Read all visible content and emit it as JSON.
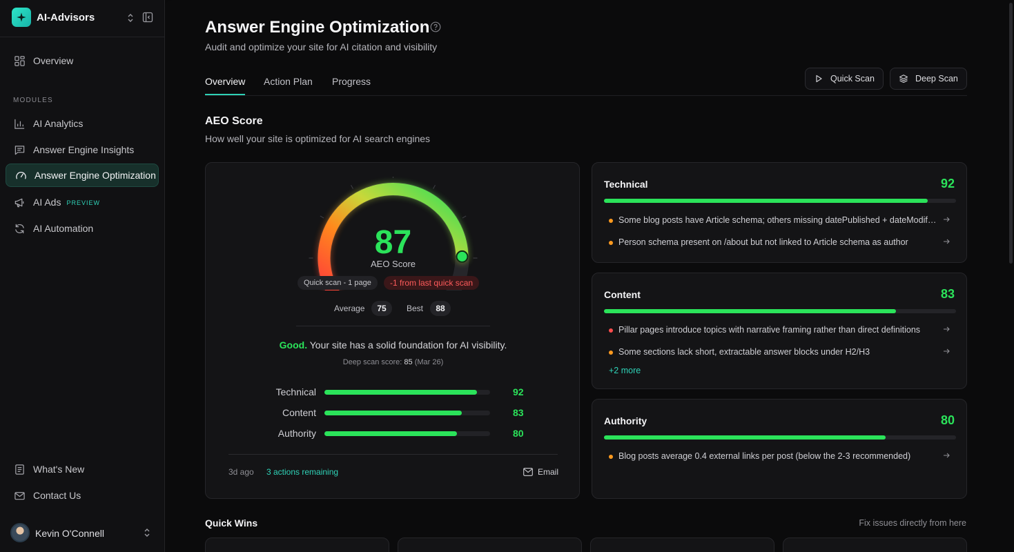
{
  "sidebar": {
    "brand": "AI-Advisors",
    "overview": "Overview",
    "section_label": "MODULES",
    "modules": [
      {
        "label": "AI Analytics",
        "icon": "bar-chart-icon"
      },
      {
        "label": "Answer Engine Insights",
        "icon": "message-square-icon"
      },
      {
        "label": "Answer Engine Optimization",
        "icon": "gauge-icon"
      },
      {
        "label": "AI Ads",
        "icon": "megaphone-icon",
        "tag": "PREVIEW"
      },
      {
        "label": "AI Automation",
        "icon": "refresh-icon"
      }
    ],
    "whats_new": "What's New",
    "contact": "Contact Us",
    "user_name": "Kevin O'Connell"
  },
  "header": {
    "title": "Answer Engine Optimization",
    "subtitle": "Audit and optimize your site for AI citation and visibility"
  },
  "tabs": [
    "Overview",
    "Action Plan",
    "Progress"
  ],
  "actions": {
    "quick_scan": "Quick Scan",
    "deep_scan": "Deep Scan"
  },
  "aeo": {
    "title": "AEO Score",
    "subtitle": "How well your site is optimized for AI search engines",
    "score": "87",
    "score_fraction": 0.87,
    "score_label": "AEO Score",
    "scan_pill": "Quick scan - 1 page",
    "delta_pill": "-1 from last quick scan",
    "average_label": "Average",
    "average": "75",
    "best_label": "Best",
    "best": "88",
    "verdict_word": "Good.",
    "verdict_text": " Your site has a solid foundation for AI visibility.",
    "deep_label": "Deep scan score: ",
    "deep_value": "85",
    "deep_date": " (Mar 26)",
    "breakdown": [
      {
        "label": "Technical",
        "value": 92
      },
      {
        "label": "Content",
        "value": 83
      },
      {
        "label": "Authority",
        "value": 80
      }
    ],
    "footer_ago": "3d ago",
    "footer_actions": "3 actions remaining",
    "footer_email": "Email"
  },
  "categories": [
    {
      "title": "Technical",
      "score": 92,
      "issues": [
        {
          "text": "Some blog posts have Article schema; others missing datePublished + dateModified",
          "color": "#ff9a1f"
        },
        {
          "text": "Person schema present on /about but not linked to Article schema as author",
          "color": "#ff9a1f"
        }
      ]
    },
    {
      "title": "Content",
      "score": 83,
      "issues": [
        {
          "text": "Pillar pages introduce topics with narrative framing rather than direct definitions",
          "color": "#ff4d4d"
        },
        {
          "text": "Some sections lack short, extractable answer blocks under H2/H3",
          "color": "#ff9a1f"
        }
      ],
      "more": "+2 more"
    },
    {
      "title": "Authority",
      "score": 80,
      "issues": [
        {
          "text": "Blog posts average 0.4 external links per post (below the 2-3 recommended)",
          "color": "#ff9a1f"
        }
      ]
    }
  ],
  "quick_wins": {
    "title": "Quick Wins",
    "subtitle": "Fix issues directly from here"
  },
  "colors": {
    "accent": "#2fd3b8",
    "score_green": "#2be35a",
    "warning": "#ff9a1f",
    "danger": "#ff4d4d"
  }
}
